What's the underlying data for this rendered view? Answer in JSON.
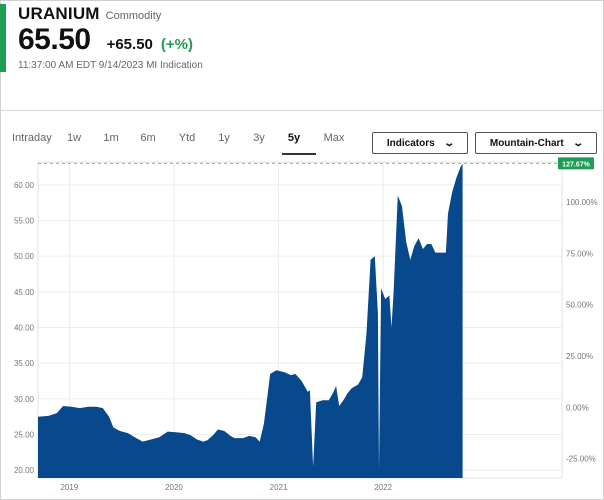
{
  "header": {
    "name": "URANIUM",
    "kind": "Commodity",
    "price": "65.50",
    "change": "+65.50",
    "change_pct": "(+%)",
    "timestamp": "11:37:00 AM EDT 9/14/2023",
    "source": "MI Indication"
  },
  "tabs": [
    {
      "label": "Intraday",
      "active": false
    },
    {
      "label": "1w",
      "active": false
    },
    {
      "label": "1m",
      "active": false
    },
    {
      "label": "6m",
      "active": false
    },
    {
      "label": "Ytd",
      "active": false
    },
    {
      "label": "1y",
      "active": false
    },
    {
      "label": "3y",
      "active": false
    },
    {
      "label": "5y",
      "active": true
    },
    {
      "label": "Max",
      "active": false
    }
  ],
  "buttons": {
    "indicators": "Indicators",
    "chart_type": "Mountain-Chart"
  },
  "colors": {
    "fill": "#07498c",
    "green": "#1f9d55",
    "dash": "#7bbf8a"
  },
  "chart_data": {
    "type": "area",
    "last_label": "127.67%",
    "xlim": [
      2018.7,
      2023.71
    ],
    "ylim": [
      18.9,
      63.2
    ],
    "y_ticks": [
      "20.00",
      "25.00",
      "30.00",
      "35.00",
      "40.00",
      "45.00",
      "50.00",
      "55.00",
      "60.00"
    ],
    "y_tick_values": [
      20,
      25,
      30,
      35,
      40,
      45,
      50,
      55,
      60
    ],
    "y2_ticks": [
      "-25.00%",
      "0.00%",
      "25.00%",
      "50.00%",
      "75.00%",
      "100.00%"
    ],
    "y2_tick_values": [
      21.6,
      28.8,
      36.0,
      43.2,
      50.4,
      57.6
    ],
    "x_ticks": [
      "2019",
      "2020",
      "2021",
      "2022"
    ],
    "x_tick_values": [
      2019.0,
      2020.0,
      2021.0,
      2022.0
    ],
    "grid": true,
    "points": [
      [
        2018.7,
        27.5
      ],
      [
        2018.8,
        27.6
      ],
      [
        2018.88,
        28.0
      ],
      [
        2018.94,
        29.0
      ],
      [
        2019.02,
        28.9
      ],
      [
        2019.1,
        28.7
      ],
      [
        2019.18,
        28.9
      ],
      [
        2019.26,
        28.9
      ],
      [
        2019.32,
        28.7
      ],
      [
        2019.38,
        27.5
      ],
      [
        2019.42,
        26.0
      ],
      [
        2019.48,
        25.5
      ],
      [
        2019.56,
        25.2
      ],
      [
        2019.64,
        24.5
      ],
      [
        2019.7,
        24.0
      ],
      [
        2019.78,
        24.3
      ],
      [
        2019.86,
        24.6
      ],
      [
        2019.94,
        25.4
      ],
      [
        2020.02,
        25.3
      ],
      [
        2020.1,
        25.2
      ],
      [
        2020.16,
        24.9
      ],
      [
        2020.22,
        24.3
      ],
      [
        2020.28,
        24.0
      ],
      [
        2020.32,
        24.2
      ],
      [
        2020.38,
        25.0
      ],
      [
        2020.42,
        25.7
      ],
      [
        2020.48,
        25.5
      ],
      [
        2020.54,
        24.8
      ],
      [
        2020.58,
        24.5
      ],
      [
        2020.66,
        24.5
      ],
      [
        2020.72,
        24.8
      ],
      [
        2020.78,
        24.6
      ],
      [
        2020.82,
        24.0
      ],
      [
        2020.86,
        26.5
      ],
      [
        2020.92,
        33.5
      ],
      [
        2020.98,
        34.0
      ],
      [
        2021.06,
        33.7
      ],
      [
        2021.12,
        33.3
      ],
      [
        2021.16,
        33.5
      ],
      [
        2021.22,
        32.5
      ],
      [
        2021.28,
        31.0
      ],
      [
        2021.3,
        31.2
      ],
      [
        2021.33,
        20.5
      ],
      [
        2021.36,
        29.5
      ],
      [
        2021.42,
        29.8
      ],
      [
        2021.48,
        29.8
      ],
      [
        2021.52,
        30.8
      ],
      [
        2021.55,
        31.8
      ],
      [
        2021.58,
        29.0
      ],
      [
        2021.62,
        29.8
      ],
      [
        2021.66,
        30.8
      ],
      [
        2021.7,
        31.5
      ],
      [
        2021.76,
        32.0
      ],
      [
        2021.8,
        33.0
      ],
      [
        2021.84,
        39.0
      ],
      [
        2021.88,
        49.5
      ],
      [
        2021.92,
        50.0
      ],
      [
        2021.95,
        42.0
      ],
      [
        2021.96,
        20.0
      ],
      [
        2021.98,
        45.5
      ],
      [
        2022.02,
        44.0
      ],
      [
        2022.06,
        44.5
      ],
      [
        2022.08,
        40.0
      ],
      [
        2022.1,
        45.0
      ],
      [
        2022.14,
        58.5
      ],
      [
        2022.18,
        57.0
      ],
      [
        2022.22,
        52.0
      ],
      [
        2022.26,
        49.5
      ],
      [
        2022.3,
        51.5
      ],
      [
        2022.34,
        52.5
      ],
      [
        2022.38,
        51.0
      ],
      [
        2022.42,
        51.7
      ],
      [
        2022.46,
        51.7
      ],
      [
        2022.5,
        50.5
      ],
      [
        2022.56,
        50.5
      ],
      [
        2022.6,
        50.5
      ],
      [
        2022.62,
        56.0
      ],
      [
        2022.66,
        59.0
      ],
      [
        2022.7,
        61.0
      ],
      [
        2022.74,
        62.5
      ],
      [
        2022.76,
        63.0
      ]
    ]
  }
}
